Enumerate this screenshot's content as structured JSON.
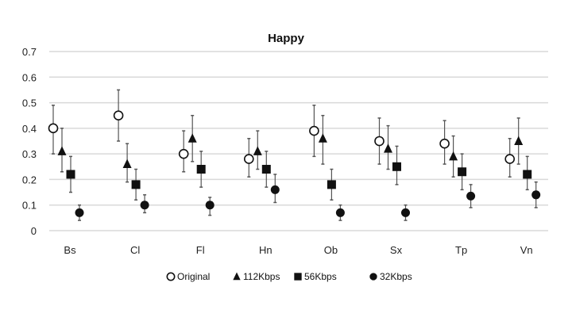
{
  "chart_data": {
    "type": "scatter",
    "title": "Happy",
    "xlabel": "",
    "ylabel": "",
    "ylim": [
      0,
      0.7
    ],
    "yticks": [
      "0",
      "0.1",
      "0.2",
      "0.3",
      "0.4",
      "0.5",
      "0.6",
      "0.7"
    ],
    "grid": true,
    "legend_position": "bottom",
    "categories": [
      "Bs",
      "Cl",
      "Fl",
      "Hn",
      "Ob",
      "Sx",
      "Tp",
      "Vn"
    ],
    "series": [
      {
        "name": "Original",
        "marker": "open-circle",
        "values": [
          0.4,
          0.45,
          0.3,
          0.28,
          0.39,
          0.35,
          0.34,
          0.28
        ],
        "low": [
          0.3,
          0.35,
          0.23,
          0.21,
          0.29,
          0.26,
          0.26,
          0.21
        ],
        "high": [
          0.49,
          0.55,
          0.39,
          0.36,
          0.49,
          0.44,
          0.43,
          0.36
        ]
      },
      {
        "name": "112Kbps",
        "marker": "triangle",
        "values": [
          0.31,
          0.26,
          0.36,
          0.31,
          0.36,
          0.32,
          0.29,
          0.35
        ],
        "low": [
          0.23,
          0.19,
          0.27,
          0.24,
          0.26,
          0.24,
          0.21,
          0.26
        ],
        "high": [
          0.4,
          0.34,
          0.45,
          0.39,
          0.45,
          0.41,
          0.37,
          0.44
        ]
      },
      {
        "name": "56Kbps",
        "marker": "square",
        "values": [
          0.22,
          0.18,
          0.24,
          0.24,
          0.18,
          0.25,
          0.23,
          0.22
        ],
        "low": [
          0.15,
          0.12,
          0.17,
          0.17,
          0.12,
          0.18,
          0.16,
          0.16
        ],
        "high": [
          0.29,
          0.24,
          0.31,
          0.31,
          0.24,
          0.33,
          0.3,
          0.29
        ]
      },
      {
        "name": "32Kbps",
        "marker": "filled-circle",
        "values": [
          0.07,
          0.1,
          0.1,
          0.16,
          0.07,
          0.07,
          0.135,
          0.14
        ],
        "low": [
          0.04,
          0.07,
          0.06,
          0.11,
          0.04,
          0.04,
          0.09,
          0.09
        ],
        "high": [
          0.1,
          0.14,
          0.13,
          0.22,
          0.1,
          0.1,
          0.18,
          0.19
        ]
      }
    ]
  }
}
